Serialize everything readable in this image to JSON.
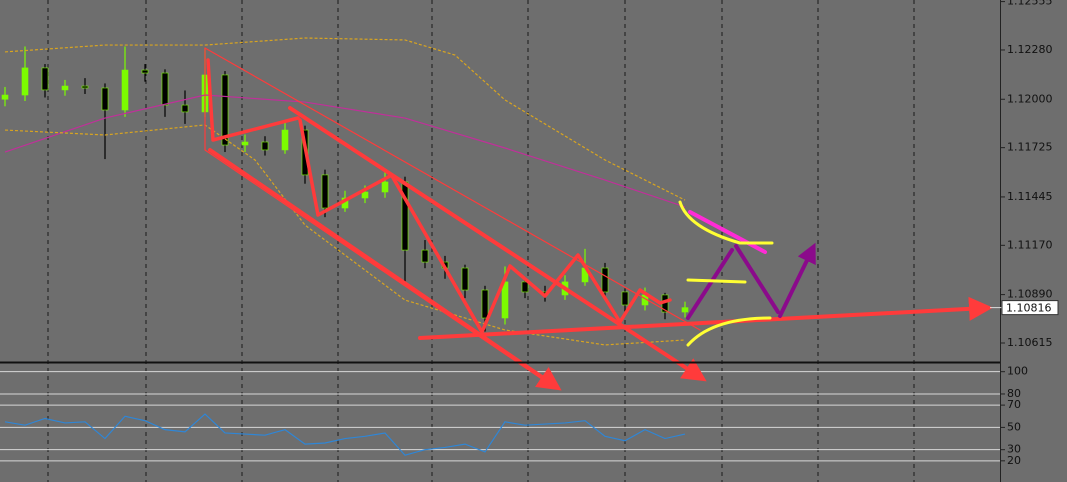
{
  "chart_data": [
    {
      "type": "candlestick",
      "open": [
        1.12,
        1.12024,
        1.12178,
        1.12053,
        1.12075,
        1.12064,
        1.11939,
        1.12166,
        1.12149,
        1.11967,
        1.11928,
        1.12138,
        1.1174,
        1.11757,
        1.11712,
        1.11825,
        1.1157,
        1.11382,
        1.11439,
        1.11473,
        1.1153,
        1.11143,
        1.11075,
        1.11041,
        1.10916,
        1.10757,
        1.10962,
        1.10905,
        1.10888,
        1.10962,
        1.11041,
        1.10905,
        1.10831,
        1.10888,
        1.10791
      ],
      "high": [
        1.1207,
        1.123,
        1.122,
        1.1211,
        1.1212,
        1.1209,
        1.123,
        1.122,
        1.1217,
        1.1205,
        1.1229,
        1.1216,
        1.118,
        1.1179,
        1.1188,
        1.1185,
        1.116,
        1.1148,
        1.1151,
        1.116,
        1.1156,
        1.112,
        1.1111,
        1.1106,
        1.1094,
        1.1105,
        1.1099,
        1.1094,
        1.11,
        1.1115,
        1.1107,
        1.1092,
        1.1093,
        1.109,
        1.1085
      ],
      "low": [
        1.1196,
        1.1199,
        1.1201,
        1.1202,
        1.1203,
        1.1166,
        1.119,
        1.121,
        1.119,
        1.1186,
        1.119,
        1.117,
        1.117,
        1.1168,
        1.1169,
        1.1152,
        1.1133,
        1.1136,
        1.1141,
        1.1144,
        1.1096,
        1.1104,
        1.1098,
        1.1087,
        1.1068,
        1.1072,
        1.1087,
        1.1085,
        1.1086,
        1.1094,
        1.1087,
        1.1079,
        1.108,
        1.1075,
        1.1076
      ],
      "close": [
        1.12024,
        1.12178,
        1.12053,
        1.12075,
        1.12064,
        1.11939,
        1.12166,
        1.12149,
        1.11967,
        1.11928,
        1.12138,
        1.1174,
        1.11757,
        1.11712,
        1.11825,
        1.1157,
        1.11382,
        1.11439,
        1.11473,
        1.1153,
        1.11143,
        1.11075,
        1.11041,
        1.10916,
        1.10757,
        1.10962,
        1.10905,
        1.10888,
        1.10962,
        1.11041,
        1.10905,
        1.10831,
        1.10888,
        1.10791,
        1.10816
      ],
      "up_color": "#7cfc00",
      "down_color": "#000000",
      "series": [
        {
          "color": "#c0309a",
          "x": [
            0,
            5,
            10,
            15,
            20,
            25,
            30,
            34
          ],
          "values": [
            1.117,
            1.11893,
            1.12024,
            1.11984,
            1.11893,
            1.11723,
            1.11541,
            1.11388
          ]
        },
        {
          "color": "#d9a520",
          "dashed": true,
          "x": [
            0,
            5,
            10,
            15,
            20,
            22.5,
            25,
            30,
            34
          ],
          "values": [
            1.12269,
            1.12308,
            1.12308,
            1.12348,
            1.12337,
            1.12251,
            1.11996,
            1.11655,
            1.11427
          ]
        },
        {
          "color": "#d9a520",
          "dashed": true,
          "x": [
            0,
            5,
            10,
            12.5,
            15,
            20,
            25,
            30,
            34
          ],
          "values": [
            1.11825,
            1.11797,
            1.11854,
            1.11655,
            1.11285,
            1.10859,
            1.10689,
            1.10604,
            1.10632
          ]
        }
      ],
      "ylim": [
        1.10507,
        1.12564
      ],
      "yticks": [
        1.12555,
        {
          "value": 1.1228,
          "label": "1.12280"
        },
        {
          "value": 1.12,
          "label": "1.12000"
        },
        1.11725,
        1.11445,
        {
          "value": 1.1117,
          "label": "1.11170"
        },
        {
          "value": 1.1089,
          "label": "1.10890"
        },
        1.10615
      ],
      "current_price": 1.10816
    },
    {
      "type": "line",
      "series": [
        {
          "color": "#2f86d6",
          "values": [
            55,
            52,
            58,
            54,
            55,
            40,
            60,
            56,
            48,
            46,
            62,
            45,
            44,
            43,
            48,
            35,
            36,
            40,
            42,
            45,
            25,
            30,
            32,
            35,
            28,
            55,
            52,
            53,
            54,
            56,
            42,
            38,
            48,
            40,
            44
          ]
        }
      ],
      "ylim": [
        1,
        106
      ],
      "yticks": [
        100,
        80,
        70,
        50,
        30,
        20
      ]
    }
  ]
}
